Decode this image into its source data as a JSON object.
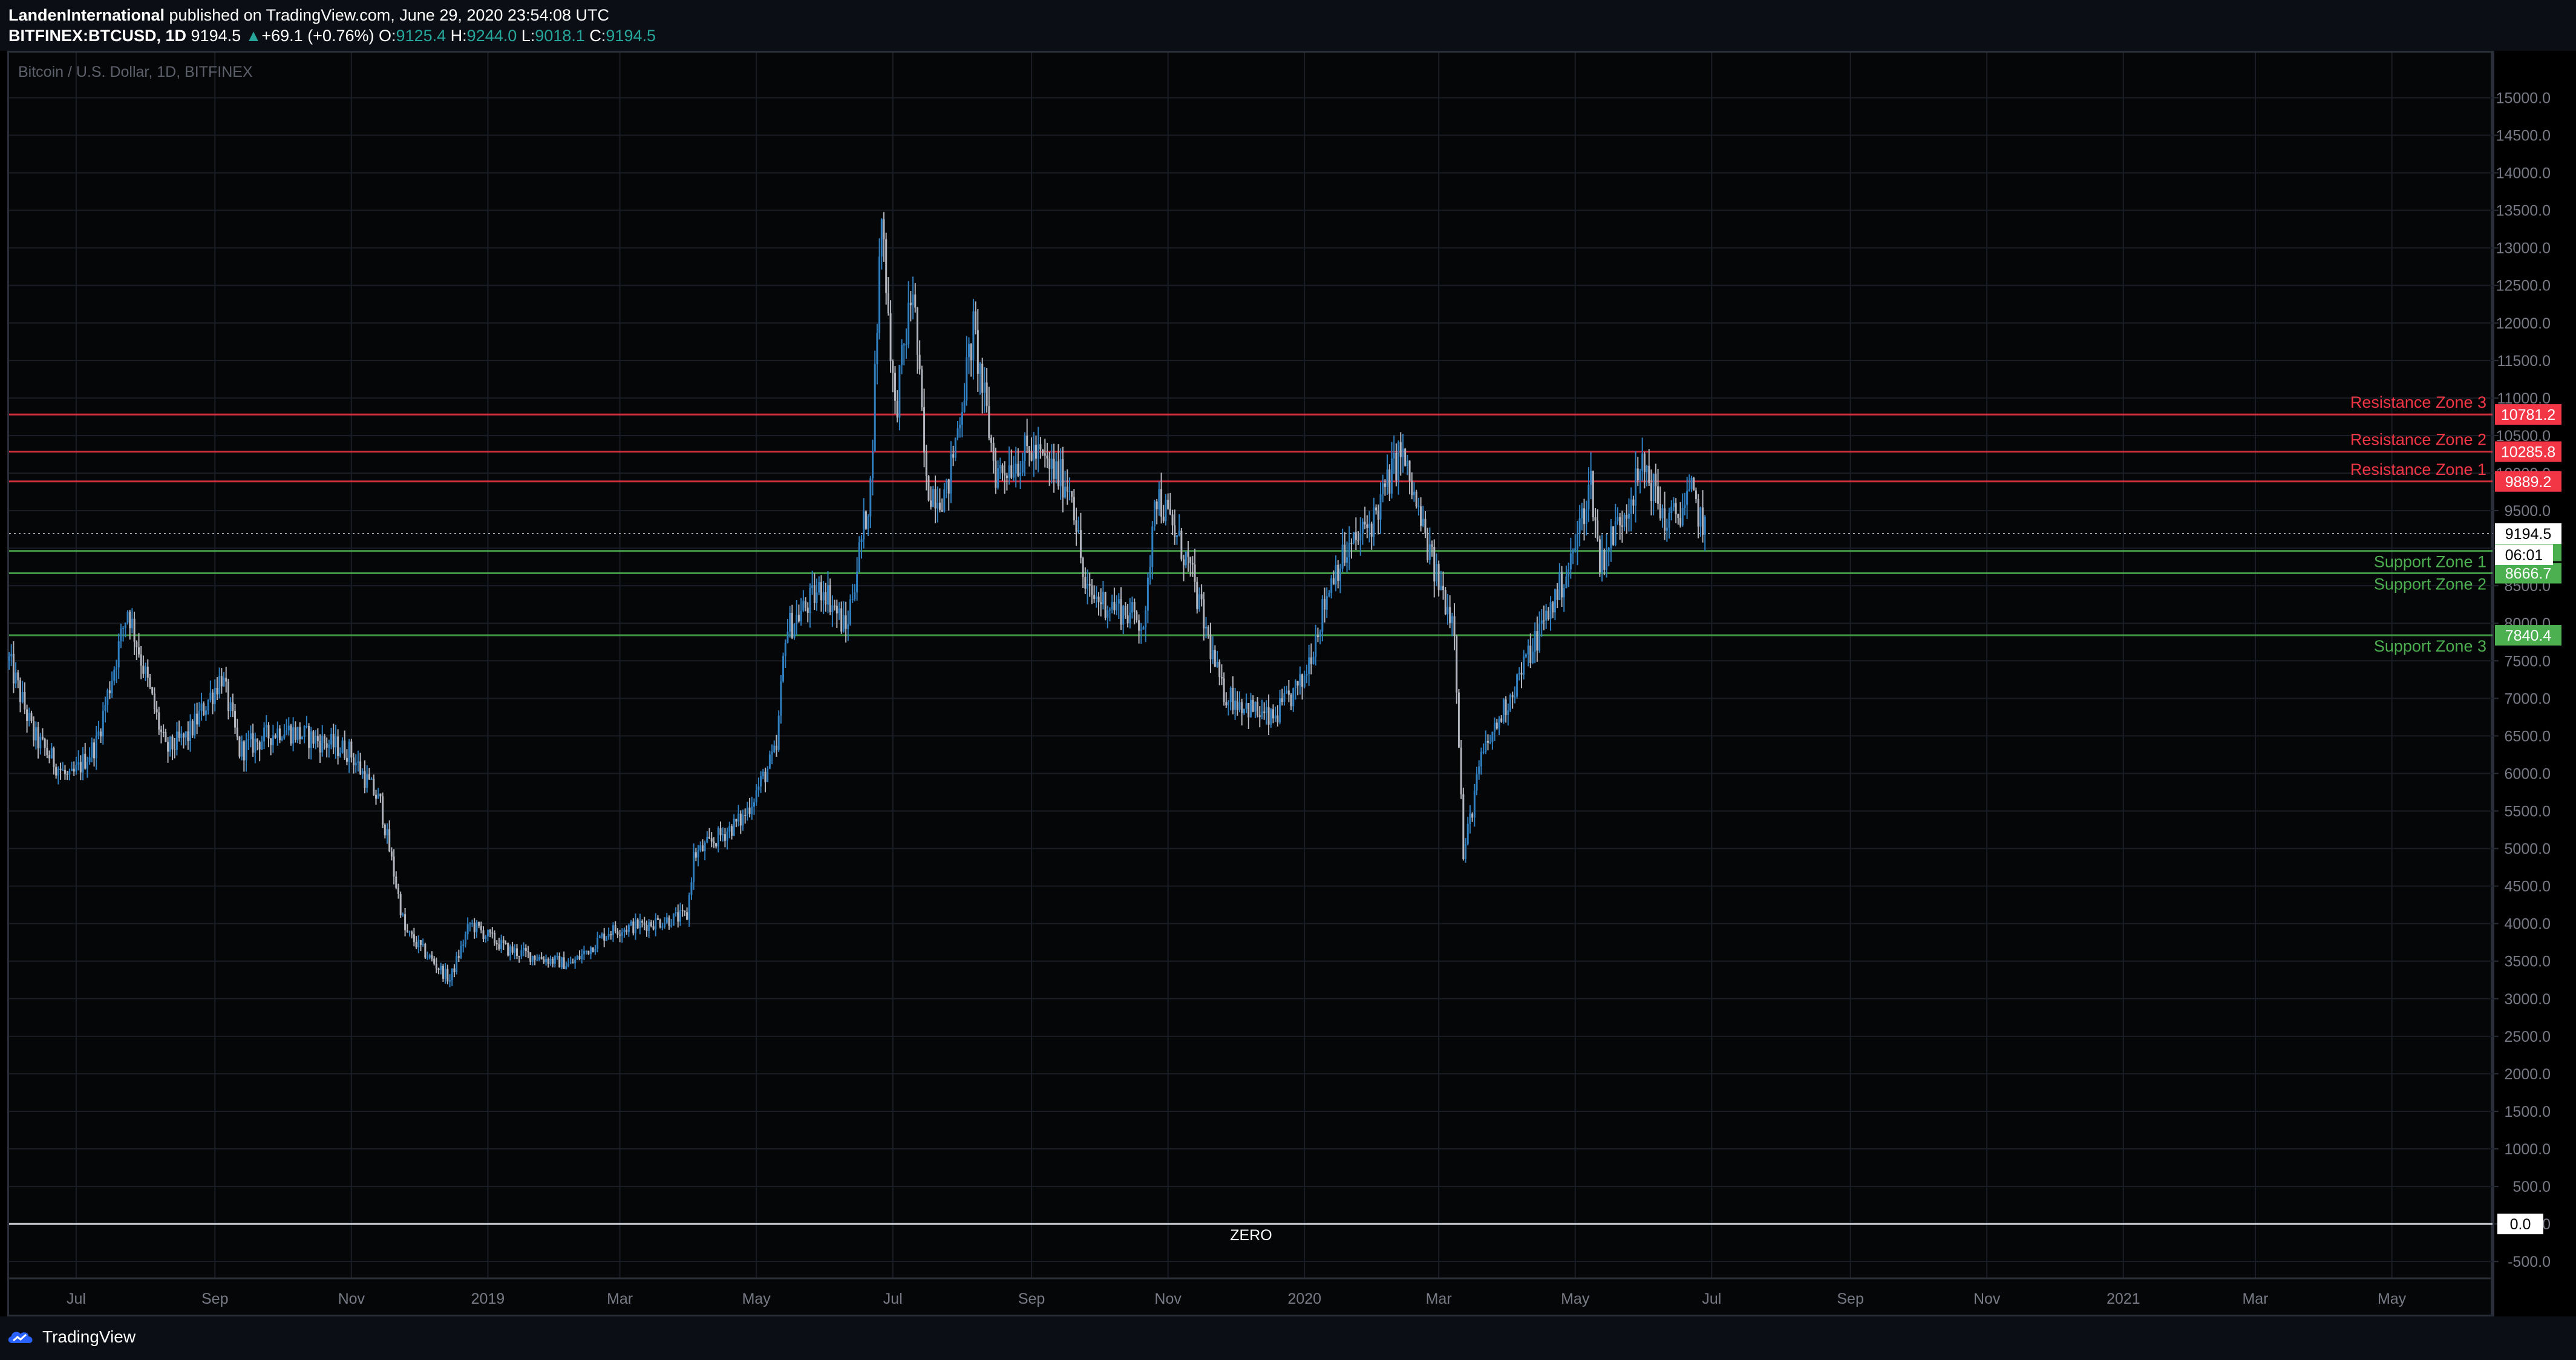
{
  "header": {
    "author": "LandenInternational",
    "published_text": " published on TradingView.com, June 29, 2020 23:54:08 UTC",
    "symbol": "BITFINEX:BTCUSD, 1D",
    "last": "9194.5",
    "change_arrow": "▲",
    "change": "+69.1 (+0.76%)",
    "o_label": "O:",
    "o_value": "9125.4",
    "h_label": "H:",
    "h_value": "9244.0",
    "l_label": "L:",
    "l_value": "9018.1",
    "c_label": "C:",
    "c_value": "9194.5"
  },
  "footer": {
    "brand": "TradingView"
  },
  "colors": {
    "up": "#2f7fc1",
    "down": "#b2b5be",
    "resistance": "#f23645",
    "support": "#4caf50",
    "grid": "#1a1d26",
    "axis_text": "#787b86"
  },
  "chart_data": {
    "type": "candlestick",
    "title": "Bitcoin / U.S. Dollar, 1D, BITFINEX",
    "ylim": [
      -700,
      15600
    ],
    "y_ticks": [
      -500,
      0,
      500,
      1000,
      1500,
      2000,
      2500,
      3000,
      3500,
      4000,
      4500,
      5000,
      5500,
      6000,
      6500,
      7000,
      7500,
      8000,
      8500,
      9000,
      9500,
      10000,
      10500,
      11000,
      11500,
      12000,
      12500,
      13000,
      13500,
      14000,
      14500,
      15000
    ],
    "x_range": [
      "2018-06-01",
      "2021-06-15"
    ],
    "x_ticks": [
      {
        "label": "Jul",
        "date": "2018-07-01"
      },
      {
        "label": "Sep",
        "date": "2018-09-01"
      },
      {
        "label": "Nov",
        "date": "2018-11-01"
      },
      {
        "label": "2019",
        "date": "2019-01-01"
      },
      {
        "label": "Mar",
        "date": "2019-03-01"
      },
      {
        "label": "May",
        "date": "2019-05-01"
      },
      {
        "label": "Jul",
        "date": "2019-07-01"
      },
      {
        "label": "Sep",
        "date": "2019-09-01"
      },
      {
        "label": "Nov",
        "date": "2019-11-01"
      },
      {
        "label": "2020",
        "date": "2020-01-01"
      },
      {
        "label": "Mar",
        "date": "2020-03-01"
      },
      {
        "label": "May",
        "date": "2020-05-01"
      },
      {
        "label": "Jul",
        "date": "2020-07-01"
      },
      {
        "label": "Sep",
        "date": "2020-09-01"
      },
      {
        "label": "Nov",
        "date": "2020-11-01"
      },
      {
        "label": "2021",
        "date": "2021-01-01"
      },
      {
        "label": "Mar",
        "date": "2021-03-01"
      },
      {
        "label": "May",
        "date": "2021-05-01"
      }
    ],
    "close_path": [
      [
        "2018-06-01",
        7500
      ],
      [
        "2018-06-12",
        6500
      ],
      [
        "2018-06-28",
        5900
      ],
      [
        "2018-07-10",
        6400
      ],
      [
        "2018-07-24",
        8200
      ],
      [
        "2018-08-10",
        6300
      ],
      [
        "2018-08-20",
        6500
      ],
      [
        "2018-09-04",
        7300
      ],
      [
        "2018-09-12",
        6300
      ],
      [
        "2018-10-01",
        6600
      ],
      [
        "2018-10-31",
        6300
      ],
      [
        "2018-11-14",
        5600
      ],
      [
        "2018-11-25",
        3900
      ],
      [
        "2018-12-15",
        3250
      ],
      [
        "2018-12-24",
        4000
      ],
      [
        "2019-01-10",
        3650
      ],
      [
        "2019-02-07",
        3450
      ],
      [
        "2019-02-24",
        3900
      ],
      [
        "2019-03-31",
        4100
      ],
      [
        "2019-04-03",
        4900
      ],
      [
        "2019-04-25",
        5400
      ],
      [
        "2019-05-10",
        6300
      ],
      [
        "2019-05-14",
        7900
      ],
      [
        "2019-05-31",
        8500
      ],
      [
        "2019-06-10",
        7900
      ],
      [
        "2019-06-21",
        9800
      ],
      [
        "2019-06-26",
        13500
      ],
      [
        "2019-07-02",
        10800
      ],
      [
        "2019-07-10",
        12500
      ],
      [
        "2019-07-16",
        9800
      ],
      [
        "2019-07-25",
        9700
      ],
      [
        "2019-08-06",
        11900
      ],
      [
        "2019-08-16",
        10000
      ],
      [
        "2019-09-01",
        10300
      ],
      [
        "2019-09-19",
        9800
      ],
      [
        "2019-09-25",
        8400
      ],
      [
        "2019-10-10",
        8200
      ],
      [
        "2019-10-22",
        8000
      ],
      [
        "2019-10-26",
        9800
      ],
      [
        "2019-11-10",
        8800
      ],
      [
        "2019-11-25",
        7100
      ],
      [
        "2019-12-17",
        6700
      ],
      [
        "2019-12-31",
        7200
      ],
      [
        "2020-01-14",
        8700
      ],
      [
        "2020-02-01",
        9400
      ],
      [
        "2020-02-13",
        10300
      ],
      [
        "2020-02-28",
        8700
      ],
      [
        "2020-03-08",
        8000
      ],
      [
        "2020-03-12",
        4900
      ],
      [
        "2020-03-20",
        6200
      ],
      [
        "2020-04-06",
        7300
      ],
      [
        "2020-04-29",
        8800
      ],
      [
        "2020-05-08",
        9900
      ],
      [
        "2020-05-12",
        8800
      ],
      [
        "2020-06-01",
        10100
      ],
      [
        "2020-06-11",
        9300
      ],
      [
        "2020-06-22",
        9700
      ],
      [
        "2020-06-29",
        9194.5
      ]
    ],
    "last_price": 9194.5,
    "last_price_label": "9194.5",
    "countdown": "06:01",
    "zones": [
      {
        "name": "Resistance Zone 3",
        "value": 10781.2,
        "label": "10781.2",
        "kind": "resistance"
      },
      {
        "name": "Resistance Zone 2",
        "value": 10285.8,
        "label": "10285.8",
        "kind": "resistance"
      },
      {
        "name": "Resistance Zone 1",
        "value": 9889.2,
        "label": "9889.2",
        "kind": "resistance"
      },
      {
        "name": "Support Zone 1",
        "value": 8963.6,
        "label": "8963.6",
        "kind": "support"
      },
      {
        "name": "Support Zone 2",
        "value": 8666.7,
        "label": "8666.7",
        "kind": "support"
      },
      {
        "name": "Support Zone 3",
        "value": 7840.4,
        "label": "7840.4",
        "kind": "support"
      }
    ],
    "zero_line": {
      "value": 0,
      "text": "ZERO",
      "label": "0.0"
    }
  }
}
